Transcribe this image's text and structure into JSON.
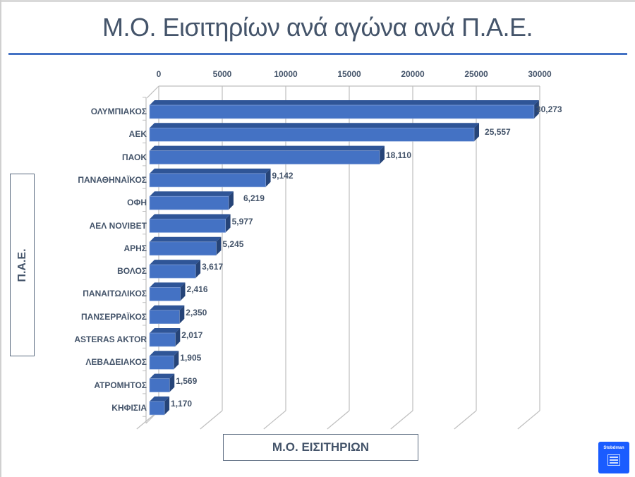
{
  "slide": {
    "title": "Μ.Ο. Εισιτηρίων ανά αγώνα ανά Π.Α.Ε.",
    "accent_color": "#4472c4",
    "logo_text": "Stobdman"
  },
  "chart_data": {
    "type": "bar",
    "orientation": "horizontal",
    "style": "3d-clustered",
    "title": "Μ.Ο. Εισιτηρίων ανά αγώνα ανά Π.Α.Ε.",
    "xlabel": "Μ.Ο. ΕΙΣΙΤΗΡΙΩΝ",
    "ylabel": "Π.Α.Ε.",
    "xlim": [
      0,
      30000
    ],
    "x_ticks": [
      "0",
      "5000",
      "10000",
      "15000",
      "20000",
      "25000",
      "30000"
    ],
    "x_axis_position": "top",
    "grid": true,
    "legend": null,
    "bar_color": "#4472c4",
    "categories": [
      "ΟΛΥΜΠΙΑΚΟΣ",
      "ΑΕΚ",
      "ΠΑΟΚ",
      "ΠΑΝΑΘΗΝΑΪΚΟΣ",
      "ΟΦΗ",
      "ΑΕΛ NOVIBET",
      "ΑΡΗΣ",
      "ΒΟΛΟΣ",
      "ΠΑΝΑΙΤΩΛΙΚΟΣ",
      "ΠΑΝΣΕΡΡΑΪΚΟΣ",
      "ASTERAS AKTOR",
      "ΛΕΒΑΔΕΙΑΚΟΣ",
      "ΑΤΡΟΜΗΤΟΣ",
      "ΚΗΦΙΣΙΑ"
    ],
    "values": [
      30273,
      25557,
      18110,
      9142,
      6219,
      5977,
      5245,
      3617,
      2416,
      2350,
      2017,
      1905,
      1569,
      1170
    ],
    "value_labels": [
      "30,273",
      "25,557",
      "18,110",
      "9,142",
      "6,219",
      "5,977",
      "5,245",
      "3,617",
      "2,416",
      "2,350",
      "2,017",
      "1,905",
      "1,569",
      "1,170"
    ]
  }
}
